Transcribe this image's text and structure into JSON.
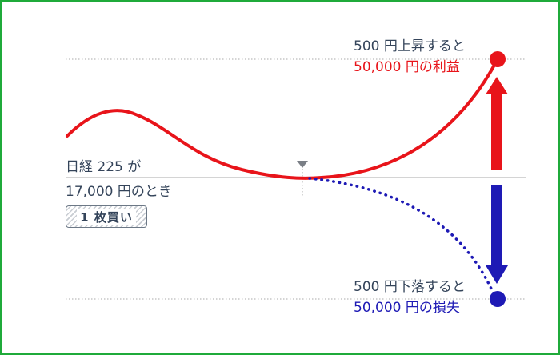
{
  "condition": {
    "line1": "日経 225 が",
    "line2": "17,000 円のとき",
    "badge": "1 枚買い"
  },
  "rise": {
    "line1": "500 円上昇すると",
    "line2": "50,000 円の利益"
  },
  "fall": {
    "line1": "500 円下落すると",
    "line2": "50,000 円の損失"
  },
  "colors": {
    "profit": "#e8141a",
    "loss": "#1e1ab5",
    "frame": "#1faa3a",
    "text": "#34445a",
    "guide": "#a9a9a9"
  }
}
